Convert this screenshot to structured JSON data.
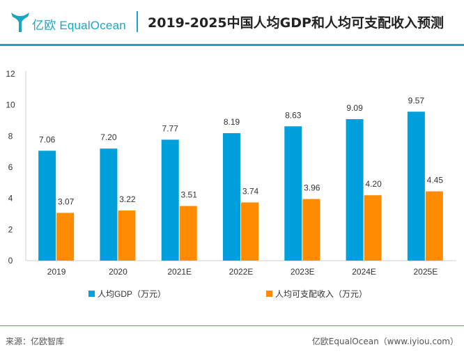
{
  "header": {
    "brand": "亿欧 EqualOcean",
    "title": "2019-2025中国人均GDP和人均可支配收入预测"
  },
  "chart_data": {
    "type": "bar",
    "title": "2019-2025中国人均GDP和人均可支配收入预测",
    "categories": [
      "2019",
      "2020",
      "2021E",
      "2022E",
      "2023E",
      "2024E",
      "2025E"
    ],
    "series": [
      {
        "name": "人均GDP（万元）",
        "color": "#00a0dc",
        "values": [
          7.06,
          7.2,
          7.77,
          8.19,
          8.63,
          9.09,
          9.57
        ]
      },
      {
        "name": "人均可支配收入（万元）",
        "color": "#ff8c00",
        "values": [
          3.07,
          3.22,
          3.51,
          3.74,
          3.96,
          4.2,
          4.45
        ]
      }
    ],
    "ylim": [
      0,
      12
    ],
    "yticks": [
      0,
      2,
      4,
      6,
      8,
      10,
      12
    ],
    "xlabel": "",
    "ylabel": "",
    "grid": false,
    "legend": "bottom"
  },
  "footer": {
    "source": "来源：亿欧智库",
    "credit": "亿欧EqualOcean（www.iyiou.com）"
  }
}
